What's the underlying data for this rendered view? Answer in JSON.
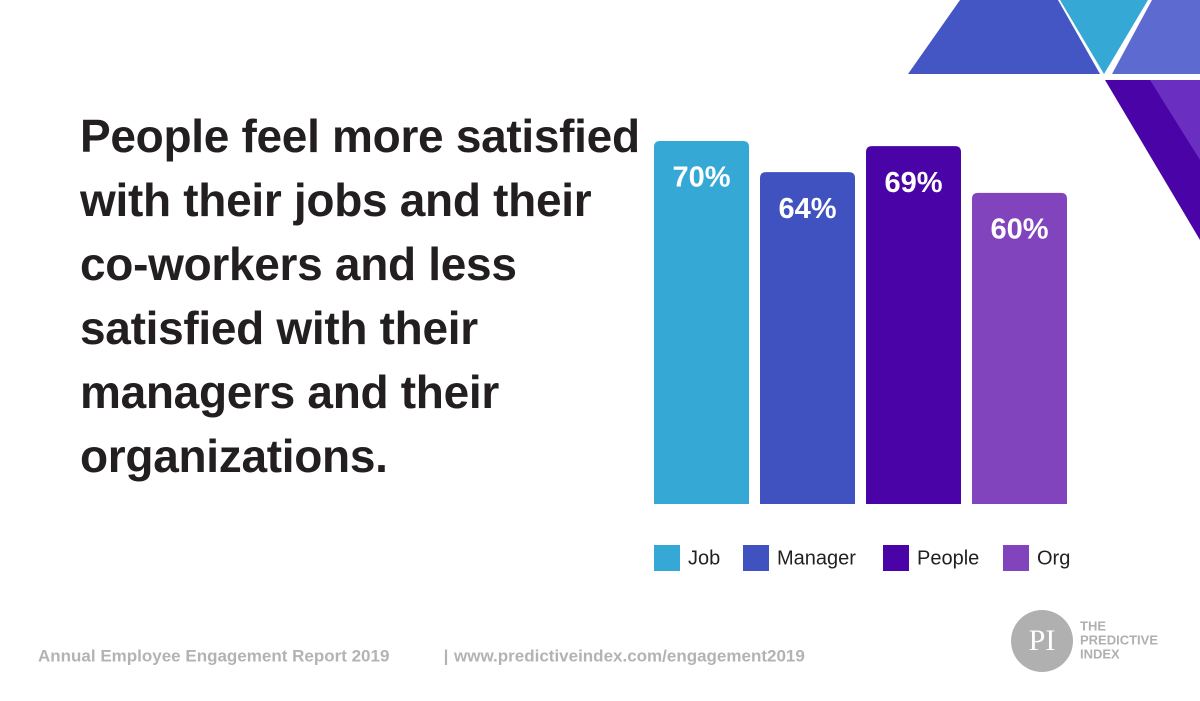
{
  "chart_data": {
    "type": "bar",
    "title": "People feel more satisfied with their jobs and their co-workers and less satisfied with their managers and their organizations.",
    "categories": [
      "Job",
      "Manager",
      "People",
      "Org"
    ],
    "values": [
      70,
      64,
      69,
      60
    ],
    "value_labels": [
      "70%",
      "64%",
      "69%",
      "60%"
    ],
    "colors": [
      "#35a8d6",
      "#4051c0",
      "#4a03a6",
      "#8144bd"
    ],
    "legend": "bottom"
  },
  "footer": {
    "report": "Annual Employee Engagement Report 2019",
    "separator": "|",
    "url": "www.predictiveindex.com/engagement2019"
  },
  "logo": {
    "mark": "PI",
    "lines": [
      "THE",
      "PREDICTIVE",
      "INDEX"
    ]
  }
}
